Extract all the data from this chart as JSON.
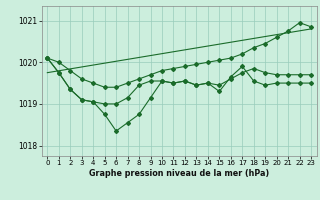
{
  "bg_color": "#cceedd",
  "grid_color": "#99ccbb",
  "line_color": "#1a6b2a",
  "xlabel": "Graphe pression niveau de la mer (hPa)",
  "xlim": [
    -0.5,
    23.5
  ],
  "ylim": [
    1017.75,
    1021.35
  ],
  "yticks": [
    1018,
    1019,
    1020,
    1021
  ],
  "xticks": [
    0,
    1,
    2,
    3,
    4,
    5,
    6,
    7,
    8,
    9,
    10,
    11,
    12,
    13,
    14,
    15,
    16,
    17,
    18,
    19,
    20,
    21,
    22,
    23
  ],
  "line_trend_x": [
    0,
    23
  ],
  "line_trend_y": [
    1019.75,
    1020.8
  ],
  "line1_x": [
    0,
    1,
    2,
    3,
    4,
    5,
    6,
    7,
    8,
    9,
    10,
    11,
    12,
    13,
    14,
    15,
    16,
    17,
    18,
    19,
    20,
    21,
    22,
    23
  ],
  "line1_y": [
    1020.1,
    1019.75,
    1019.35,
    1019.1,
    1019.05,
    1019.0,
    1019.0,
    1019.15,
    1019.45,
    1019.55,
    1019.55,
    1019.5,
    1019.55,
    1019.45,
    1019.5,
    1019.45,
    1019.6,
    1019.75,
    1019.85,
    1019.75,
    1019.7,
    1019.7,
    1019.7,
    1019.7
  ],
  "line2_x": [
    0,
    1,
    2,
    3,
    4,
    5,
    6,
    7,
    8,
    9,
    10,
    11,
    12,
    13,
    14,
    15,
    16,
    17,
    18,
    19,
    20,
    21,
    22,
    23
  ],
  "line2_y": [
    1020.1,
    1019.75,
    1019.35,
    1019.1,
    1019.05,
    1018.75,
    1018.35,
    1018.55,
    1018.75,
    1019.15,
    1019.55,
    1019.5,
    1019.55,
    1019.45,
    1019.5,
    1019.3,
    1019.65,
    1019.9,
    1019.55,
    1019.45,
    1019.5,
    1019.5,
    1019.5,
    1019.5
  ],
  "line3_x": [
    0,
    1,
    2,
    3,
    4,
    5,
    6,
    7,
    8,
    9,
    10,
    11,
    12,
    13,
    14,
    15,
    16,
    17,
    18,
    19,
    20,
    21,
    22,
    23
  ],
  "line3_y": [
    1020.1,
    1020.0,
    1019.8,
    1019.6,
    1019.5,
    1019.4,
    1019.4,
    1019.5,
    1019.6,
    1019.7,
    1019.8,
    1019.85,
    1019.9,
    1019.95,
    1020.0,
    1020.05,
    1020.1,
    1020.2,
    1020.35,
    1020.45,
    1020.6,
    1020.75,
    1020.95,
    1020.85
  ]
}
